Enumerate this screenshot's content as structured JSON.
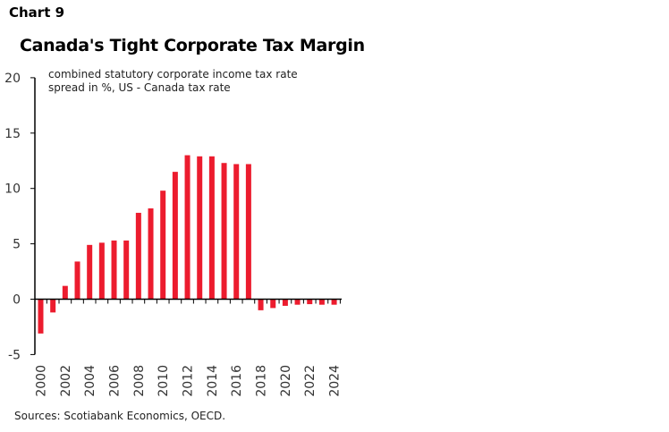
{
  "header": {
    "chart_number": "Chart 9"
  },
  "chart_data": {
    "type": "bar",
    "title": "Canada's Tight Corporate Tax Margin",
    "subtitle": [
      "combined statutory corporate income tax rate",
      "spread in %, US - Canada tax rate"
    ],
    "categories": [
      "2000",
      "2001",
      "2002",
      "2003",
      "2004",
      "2005",
      "2006",
      "2007",
      "2008",
      "2009",
      "2010",
      "2011",
      "2012",
      "2013",
      "2014",
      "2015",
      "2016",
      "2017",
      "2018",
      "2019",
      "2020",
      "2021",
      "2022",
      "2023",
      "2024"
    ],
    "values": [
      -3.1,
      -1.2,
      1.2,
      3.4,
      4.9,
      5.1,
      5.3,
      5.3,
      7.8,
      8.2,
      9.8,
      11.5,
      13.0,
      12.9,
      12.9,
      12.3,
      12.2,
      12.2,
      -1.0,
      -0.8,
      -0.6,
      -0.5,
      -0.45,
      -0.5,
      -0.5
    ],
    "x_tick_labels": [
      "2000",
      "2002",
      "2004",
      "2006",
      "2008",
      "2010",
      "2012",
      "2014",
      "2016",
      "2018",
      "2020",
      "2022",
      "2024"
    ],
    "y_tick_labels": [
      "20",
      "15",
      "10",
      "5",
      "0",
      "-5"
    ],
    "ylim": [
      -5,
      20
    ],
    "grid": false,
    "bar_color": "#EC1C2E",
    "xlabel": "",
    "ylabel": ""
  },
  "footer": {
    "source": "Sources: Scotiabank Economics, OECD."
  }
}
